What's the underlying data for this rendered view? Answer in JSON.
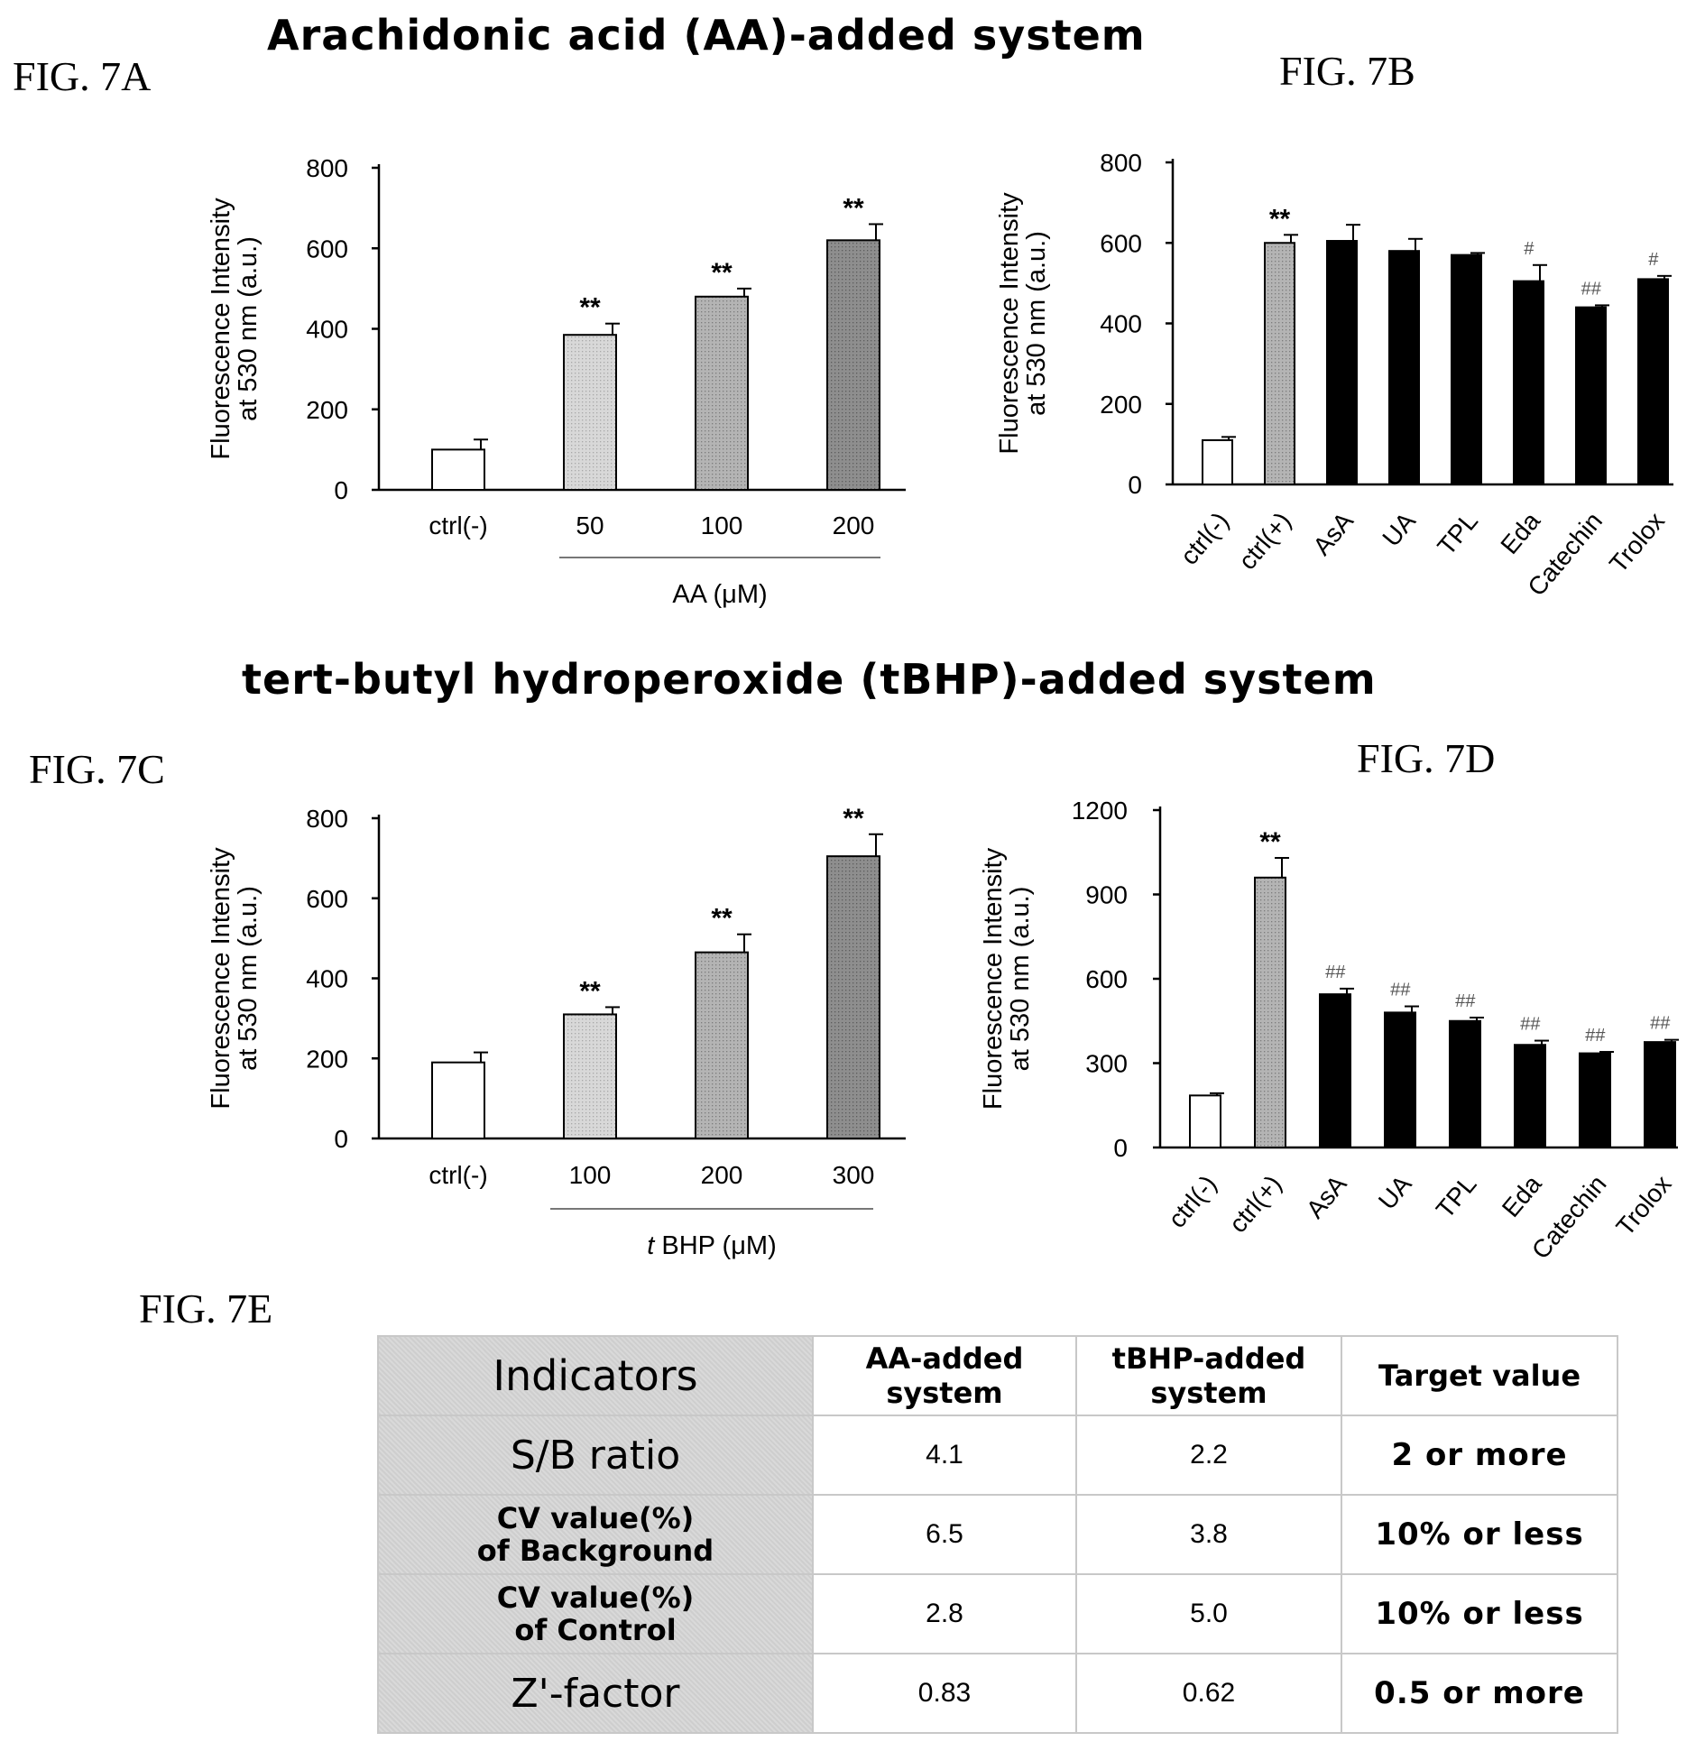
{
  "figure_labels": {
    "a": "FIG. 7A",
    "b": "FIG. 7B",
    "c": "FIG. 7C",
    "d": "FIG. 7D",
    "e": "FIG. 7E"
  },
  "section_titles": {
    "aa": "Arachidonic acid (AA)-added system",
    "tbhp": "tert-butyl hydroperoxide (tBHP)-added system"
  },
  "colors": {
    "white_bar": "#ffffff",
    "light_gray_bar": "#d8d8d8",
    "mid_gray_bar": "#b4b4b4",
    "dark_gray_bar": "#8e8e8e",
    "black_bar": "#000000",
    "table_shade": "#d9d9d9"
  },
  "chart_data": [
    {
      "id": "fig7a",
      "type": "bar",
      "ylabel_line1": "Fluorescence Intensity",
      "ylabel_line2": "at 530 nm (a.u.)",
      "ylim": [
        0,
        800
      ],
      "yticks": [
        0,
        200,
        400,
        600,
        800
      ],
      "categories": [
        "ctrl(-)",
        "50",
        "100",
        "200"
      ],
      "values": [
        100,
        385,
        480,
        620
      ],
      "errors": [
        25,
        28,
        20,
        40
      ],
      "annotations": [
        "",
        "**",
        "**",
        "**"
      ],
      "fill": [
        "white",
        "light",
        "mid",
        "dark"
      ],
      "group_label": "AA (μM)",
      "group_start": 1,
      "rotate_ticks": false
    },
    {
      "id": "fig7b",
      "type": "bar",
      "ylabel_line1": "Fluorescence Intensity",
      "ylabel_line2": "at 530 nm (a.u.)",
      "ylim": [
        0,
        800
      ],
      "yticks": [
        0,
        200,
        400,
        600,
        800
      ],
      "categories": [
        "ctrl(-)",
        "ctrl(+)",
        "AsA",
        "UA",
        "TPL",
        "Eda",
        "Catechin",
        "Trolox"
      ],
      "values": [
        110,
        600,
        605,
        580,
        570,
        505,
        440,
        510
      ],
      "errors": [
        8,
        20,
        40,
        30,
        5,
        40,
        5,
        8
      ],
      "annotations": [
        "",
        "**",
        "",
        "",
        "",
        "#",
        "##",
        "#"
      ],
      "fill": [
        "white",
        "mid",
        "black",
        "black",
        "black",
        "black",
        "black",
        "black"
      ],
      "rotate_ticks": true
    },
    {
      "id": "fig7c",
      "type": "bar",
      "ylabel_line1": "Fluorescence Intensity",
      "ylabel_line2": "at 530 nm (a.u.)",
      "ylim": [
        0,
        800
      ],
      "yticks": [
        0,
        200,
        400,
        600,
        800
      ],
      "categories": [
        "ctrl(-)",
        "100",
        "200",
        "300"
      ],
      "values": [
        190,
        310,
        465,
        705
      ],
      "errors": [
        25,
        18,
        45,
        55
      ],
      "annotations": [
        "",
        "**",
        "**",
        "**"
      ],
      "fill": [
        "white",
        "light",
        "mid",
        "dark"
      ],
      "group_label_italic": "t",
      "group_label": "BHP (μM)",
      "group_start": 1,
      "rotate_ticks": false
    },
    {
      "id": "fig7d",
      "type": "bar",
      "ylabel_line1": "Fluorescence Intensity",
      "ylabel_line2": "at 530 nm (a.u.)",
      "ylim": [
        0,
        1200
      ],
      "yticks": [
        0,
        300,
        600,
        900,
        1200
      ],
      "categories": [
        "ctrl(-)",
        "ctrl(+)",
        "AsA",
        "UA",
        "TPL",
        "Eda",
        "Catechin",
        "Trolox"
      ],
      "values": [
        185,
        960,
        545,
        480,
        450,
        365,
        335,
        375
      ],
      "errors": [
        8,
        70,
        20,
        22,
        12,
        15,
        5,
        8
      ],
      "annotations": [
        "",
        "**",
        "##",
        "##",
        "##",
        "##",
        "##",
        "##"
      ],
      "fill": [
        "white",
        "mid",
        "black",
        "black",
        "black",
        "black",
        "black",
        "black"
      ],
      "rotate_ticks": true
    },
    {
      "id": "fig7e",
      "type": "table",
      "header": [
        "Indicators",
        "AA-added system",
        "tBHP-added system",
        "Target value"
      ],
      "rows": [
        [
          "S/B ratio",
          "4.1",
          "2.2",
          "2 or more"
        ],
        [
          "CV value(%) of Background",
          "6.5",
          "3.8",
          "10% or less"
        ],
        [
          "CV value(%) of Control",
          "2.8",
          "5.0",
          "10% or less"
        ],
        [
          "Z'-factor",
          "0.83",
          "0.62",
          "0.5 or more"
        ]
      ]
    }
  ],
  "table_e": {
    "header": {
      "indicators": "Indicators",
      "aa_l1": "AA-added",
      "aa_l2": "system",
      "tb_l1": "tBHP-added",
      "tb_l2": "system",
      "target": "Target value"
    },
    "rows": [
      {
        "ind_l1": "S/B ratio",
        "ind_l2": "",
        "aa": "4.1",
        "tb": "2.2",
        "target": "2 or more"
      },
      {
        "ind_l1": "CV value(%)",
        "ind_l2": "of Background",
        "aa": "6.5",
        "tb": "3.8",
        "target": "10% or less"
      },
      {
        "ind_l1": "CV value(%)",
        "ind_l2": "of Control",
        "aa": "2.8",
        "tb": "5.0",
        "target": "10% or less"
      },
      {
        "ind_l1": "Z'-factor",
        "ind_l2": "",
        "aa": "0.83",
        "tb": "0.62",
        "target": "0.5 or more"
      }
    ]
  }
}
